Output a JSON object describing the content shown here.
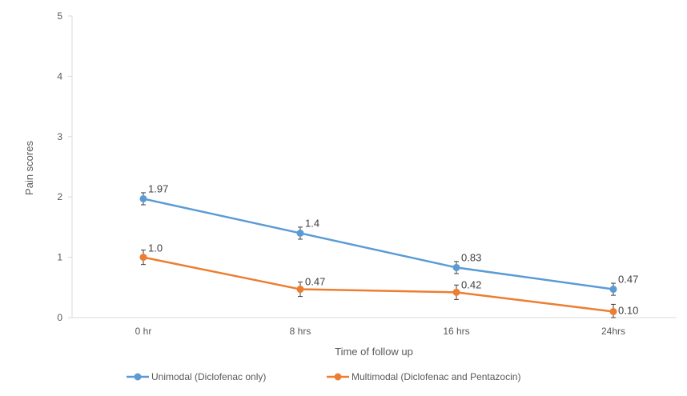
{
  "chart_data": {
    "type": "line",
    "title": "",
    "xlabel": "Time of follow up",
    "ylabel": "Pain scores",
    "categories": [
      "0 hr",
      "8 hrs",
      "16 hrs",
      "24hrs"
    ],
    "ylim": [
      0,
      5
    ],
    "yticks": [
      "0",
      "1",
      "2",
      "3",
      "4",
      "5"
    ],
    "grid": false,
    "legend_position": "bottom",
    "series": [
      {
        "name": "Unimodal (Diclofenac only)",
        "color": "#5B9BD5",
        "values": [
          1.97,
          1.4,
          0.83,
          0.47
        ],
        "labels": [
          "1.97",
          "1.4",
          "0.83",
          "0.47"
        ],
        "error": [
          0.1,
          0.1,
          0.1,
          0.1
        ]
      },
      {
        "name": "Multimodal (Diclofenac and Pentazocin)",
        "color": "#ED7D31",
        "values": [
          1.0,
          0.47,
          0.42,
          0.1
        ],
        "labels": [
          "1.0",
          "0.47",
          "0.42",
          "0.10"
        ],
        "error": [
          0.12,
          0.12,
          0.12,
          0.12
        ]
      }
    ]
  }
}
